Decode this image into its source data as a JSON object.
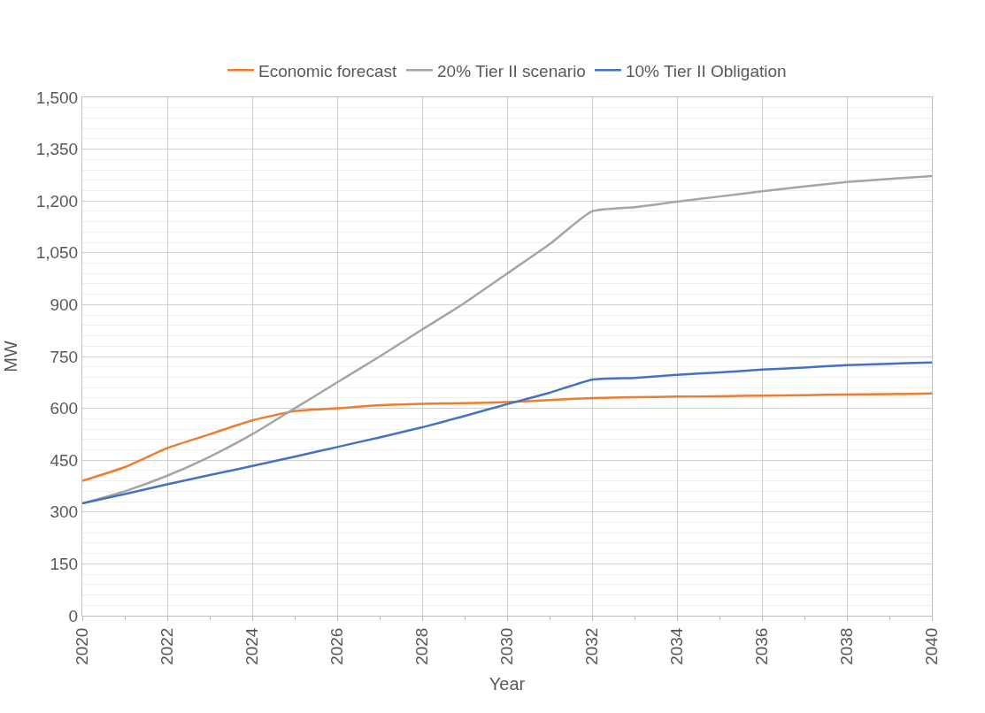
{
  "chart_data": {
    "type": "line",
    "xlabel": "Year",
    "ylabel": "MW",
    "x": [
      2020,
      2021,
      2022,
      2023,
      2024,
      2025,
      2026,
      2027,
      2028,
      2029,
      2030,
      2031,
      2032,
      2033,
      2034,
      2035,
      2036,
      2037,
      2038,
      2039,
      2040
    ],
    "series": [
      {
        "name": "Economic forecast",
        "color": "#ed7d31",
        "values": [
          390,
          430,
          485,
          525,
          565,
          592,
          600,
          609,
          613,
          615,
          618,
          624,
          630,
          632,
          634,
          635,
          637,
          638,
          640,
          641,
          643
        ]
      },
      {
        "name": "20% Tier II scenario",
        "color": "#a5a5a5",
        "values": [
          325,
          360,
          405,
          460,
          525,
          600,
          675,
          750,
          828,
          905,
          990,
          1075,
          1170,
          1182,
          1198,
          1213,
          1228,
          1242,
          1255,
          1264,
          1272
        ]
      },
      {
        "name": "10% Tier II Obligation",
        "color": "#4472c4",
        "values": [
          325,
          352,
          380,
          407,
          433,
          460,
          488,
          516,
          545,
          578,
          612,
          645,
          683,
          688,
          697,
          704,
          712,
          718,
          725,
          729,
          733
        ]
      }
    ],
    "xlim": [
      2020,
      2040
    ],
    "xticks": [
      2020,
      2022,
      2024,
      2026,
      2028,
      2030,
      2032,
      2034,
      2036,
      2038,
      2040
    ],
    "ylim": [
      0,
      1500
    ],
    "yticks": [
      0,
      150,
      300,
      450,
      600,
      750,
      900,
      {
        "value": 1050,
        "label": "1,050"
      },
      {
        "value": 1200,
        "label": "1,200"
      },
      {
        "value": 1350,
        "label": "1,350"
      },
      {
        "value": 1500,
        "label": "1,500"
      }
    ],
    "grid": true,
    "legend": "top",
    "marker": "none",
    "line_style": "solid"
  }
}
